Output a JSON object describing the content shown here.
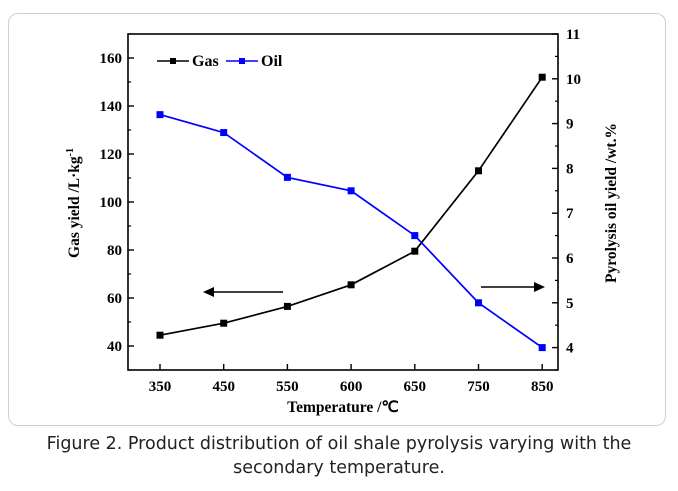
{
  "caption": "Figure 2. Product distribution of oil shale pyrolysis varying with the secondary temperature.",
  "chart_data": {
    "type": "line",
    "categories": [
      "350",
      "450",
      "550",
      "600",
      "650",
      "750",
      "850"
    ],
    "xlabel": "Temperature /℃",
    "ylabel_left": "Gas yield /L·kg",
    "ylabel_left_superscript": "-1",
    "ylabel_right": "Pyrolysis oil yield /wt.%",
    "ylim_left": [
      30,
      170
    ],
    "yticks_left": [
      40,
      60,
      80,
      100,
      120,
      140,
      160
    ],
    "ylim_right": [
      3.5,
      11
    ],
    "yticks_right": [
      4,
      5,
      6,
      7,
      8,
      9,
      10,
      11
    ],
    "legend_position": "top-left",
    "grid": false,
    "series": [
      {
        "name": "Gas",
        "axis": "left",
        "color": "#000000",
        "marker": "square",
        "values": [
          44.5,
          49.5,
          56.5,
          65.5,
          79.5,
          113,
          152
        ]
      },
      {
        "name": "Oil",
        "axis": "right",
        "color": "#0000ff",
        "marker": "square",
        "values": [
          9.2,
          8.8,
          7.8,
          7.5,
          6.5,
          5.0,
          4.0
        ]
      }
    ],
    "annotations": [
      {
        "type": "arrow",
        "direction": "left",
        "meaning": "Gas series uses left axis"
      },
      {
        "type": "arrow",
        "direction": "right",
        "meaning": "Oil series uses right axis"
      }
    ]
  }
}
